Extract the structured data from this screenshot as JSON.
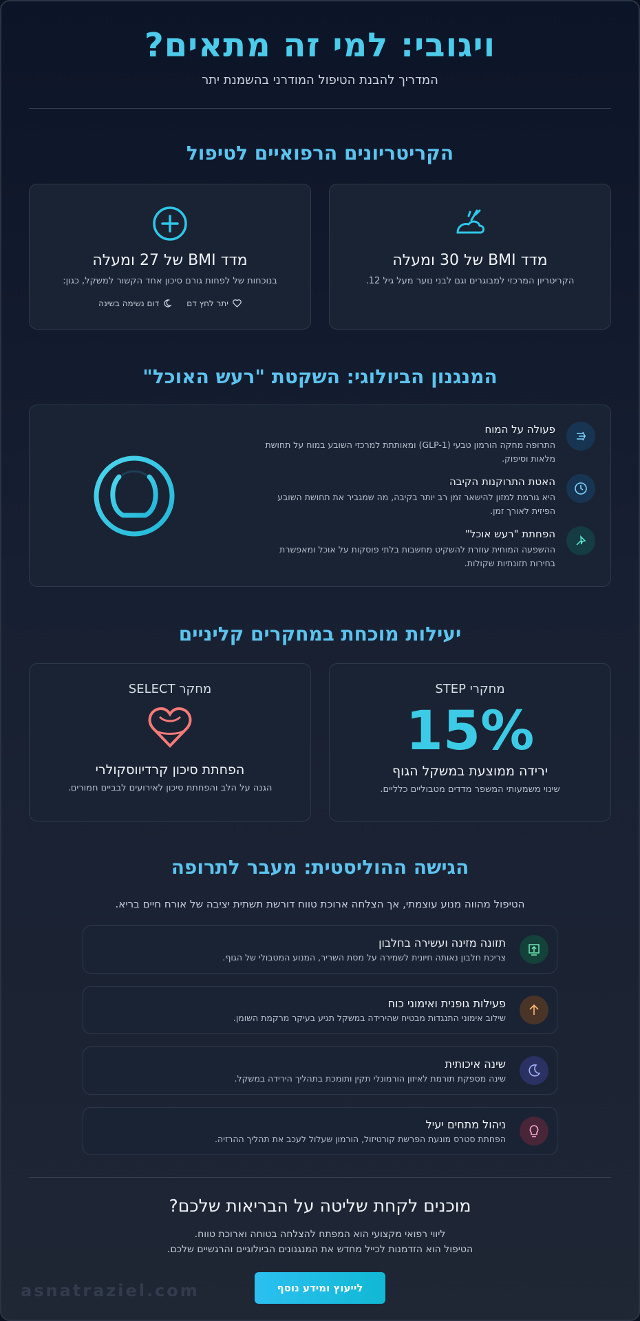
{
  "header": {
    "title": "ויגובי: למי זה מתאים?",
    "subtitle": "המדריך להבנת הטיפול המודרני בהשמנת יתר"
  },
  "criteria": {
    "heading": "הקריטריונים הרפואיים לטיפול",
    "cards": [
      {
        "title": "מדד BMI של 30 ומעלה",
        "text": "הקריטריון המרכזי למבוגרים וגם לבני נוער מעל גיל 12."
      },
      {
        "title": "מדד BMI של 27 ומעלה",
        "text": "בנוכחות של לפחות גורם סיכון אחד הקשור למשקל, כגון:",
        "tags": [
          "יתר לחץ דם",
          "דום נשימה בשינה"
        ]
      }
    ]
  },
  "mechanism": {
    "heading": "המנגנון הביולוגי: השקטת \"רעש האוכל\"",
    "items": [
      {
        "title": "פעולה על המוח",
        "text": "התרופה מחקה הורמון טבעי (GLP-1) ומאותתת למרכזי השובע במוח על תחושת מלאות וסיפוק."
      },
      {
        "title": "האטת התרוקנות הקיבה",
        "text": "היא גורמת למזון להישאר זמן רב יותר בקיבה, מה שמגביר את תחושת השובע הפיזית לאורך זמן."
      },
      {
        "title": "הפחתת \"רעש אוכל\"",
        "text": "ההשפעה המוחית עוזרת להשקיט מחשבות בלתי פוסקות על אוכל ומאפשרת בחירות תזונתיות שקולות."
      }
    ]
  },
  "efficacy": {
    "heading": "יעילות מוכחת במחקרים קליניים",
    "cards": [
      {
        "label": "מחקרי STEP",
        "stat": "15%",
        "title": "ירידה ממוצעת במשקל הגוף",
        "text": "שינוי משמעותי המשפר מדדים מטבוליים כלליים."
      },
      {
        "label": "מחקר SELECT",
        "title": "הפחתת סיכון קרדיווסקולרי",
        "text": "הגנה על הלב והפחתת סיכון לאירועים לבביים חמורים."
      }
    ]
  },
  "holistic": {
    "heading": "הגישה ההוליסטית: מעבר לתרופה",
    "intro": "הטיפול מהווה מנוע עוצמתי, אך הצלחה ארוכת טווח דורשת תשתית יציבה של אורח חיים בריא.",
    "items": [
      {
        "title": "תזונה מזינה ועשירה בחלבון",
        "text": "צריכת חלבון נאותה חיונית לשמירה על מסת השריר, המנוע המטבולי של הגוף."
      },
      {
        "title": "פעילות גופנית ואימוני כוח",
        "text": "שילוב אימוני התנגדות מבטיח שהירידה במשקל תגיע בעיקר מרקמת השומן."
      },
      {
        "title": "שינה איכותית",
        "text": "שינה מספקת תורמת לאיזון הורמונלי תקין ותומכת בתהליך הירידה במשקל."
      },
      {
        "title": "ניהול מתחים יעיל",
        "text": "הפחתת סטרס מונעת הפרשת קורטיזול, הורמון שעלול לעכב את תהליך ההרזיה."
      }
    ]
  },
  "cta": {
    "heading": "מוכנים לקחת שליטה על הבריאות שלכם?",
    "lines": [
      "ליווי רפואי מקצועי הוא המפתח להצלחה בטוחה וארוכת טווח.",
      "הטיפול הוא הזדמנות לכייל מחדש את המנגנונים הביולוגיים והרגשיים שלכם."
    ],
    "button": "לייעוץ ומידע נוסף"
  },
  "watermark": "asnatraziel.com"
}
